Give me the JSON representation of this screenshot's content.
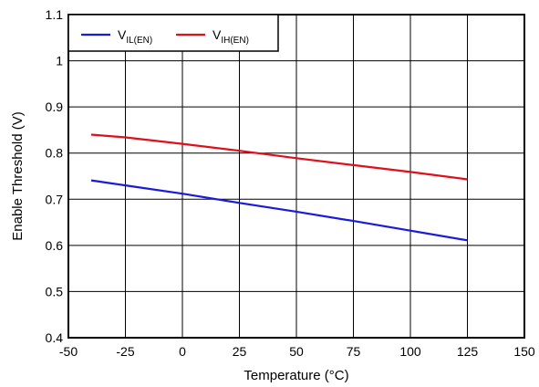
{
  "chart_data": {
    "type": "line",
    "title": "",
    "xlabel": "Temperature (°C)",
    "ylabel": "Enable Threshold (V)",
    "xlim": [
      -50,
      150
    ],
    "ylim": [
      0.4,
      1.1
    ],
    "xticks": [
      -50,
      -25,
      0,
      25,
      50,
      75,
      100,
      125,
      150
    ],
    "yticks": [
      0.4,
      0.5,
      0.6,
      0.7,
      0.8,
      0.9,
      1,
      1.1
    ],
    "xtick_labels": [
      "-50",
      "-25",
      "0",
      "25",
      "50",
      "75",
      "100",
      "125",
      "150"
    ],
    "ytick_labels": [
      "0.4",
      "0.5",
      "0.6",
      "0.7",
      "0.8",
      "0.9",
      "1",
      "1.1"
    ],
    "grid": true,
    "legend_position": "top-left",
    "series": [
      {
        "name": "V_IL(EN)",
        "name_main": "V",
        "name_sub": "IL(EN)",
        "color": "#1a1adc",
        "x": [
          -40,
          -25,
          0,
          25,
          50,
          75,
          100,
          125
        ],
        "y": [
          0.741,
          0.73,
          0.712,
          0.692,
          0.673,
          0.653,
          0.632,
          0.611
        ]
      },
      {
        "name": "V_IH(EN)",
        "name_main": "V",
        "name_sub": "IH(EN)",
        "color": "#e0101a",
        "x": [
          -40,
          -25,
          0,
          25,
          50,
          75,
          100,
          125
        ],
        "y": [
          0.84,
          0.834,
          0.82,
          0.805,
          0.789,
          0.774,
          0.759,
          0.743
        ]
      }
    ]
  }
}
